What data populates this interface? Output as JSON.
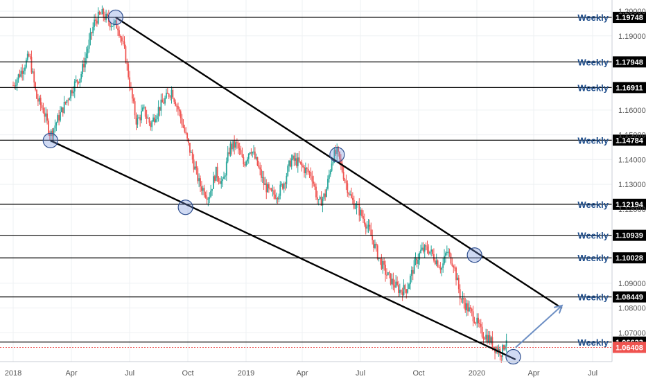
{
  "chart_data": {
    "type": "candlestick",
    "title": "",
    "x_ticks": [
      "2018",
      "Apr",
      "Jul",
      "Oct",
      "2019",
      "Apr",
      "Jul",
      "Oct",
      "2020",
      "Apr",
      "Jul"
    ],
    "y_ticks": [
      "1.20000",
      "1.19000",
      "1.16000",
      "1.15000",
      "1.14000",
      "1.13000",
      "1.12000",
      "1.09000",
      "1.08000",
      "1.07000"
    ],
    "ylim": [
      1.0505,
      1.2045
    ],
    "grid": true,
    "last_price": {
      "value": 1.06408,
      "label": "1.06408"
    },
    "horizontal_levels": [
      {
        "tag": "Weekly",
        "value": 1.19748,
        "label": "1.19748"
      },
      {
        "tag": "Weekly",
        "value": 1.17948,
        "label": "1.17948"
      },
      {
        "tag": "Weekly",
        "value": 1.16911,
        "label": "1.16911"
      },
      {
        "tag": "Weekly",
        "value": 1.14784,
        "label": "1.14784"
      },
      {
        "tag": "Weekly",
        "value": 1.12194,
        "label": "1.12194"
      },
      {
        "tag": "Weekly",
        "value": 1.10939,
        "label": "1.10939"
      },
      {
        "tag": "Weekly",
        "value": 1.10028,
        "label": "1.10028"
      },
      {
        "tag": "Weekly",
        "value": 1.08449,
        "label": "1.08449"
      },
      {
        "tag": "Weekly",
        "value": 1.06623,
        "label": "1.06623"
      }
    ],
    "price_path": [
      [
        0.0,
        1.17
      ],
      [
        0.03,
        1.175
      ],
      [
        0.07,
        1.182
      ],
      [
        0.1,
        1.165
      ],
      [
        0.13,
        1.16
      ],
      [
        0.16,
        1.15
      ],
      [
        0.19,
        1.156
      ],
      [
        0.22,
        1.162
      ],
      [
        0.26,
        1.17
      ],
      [
        0.29,
        1.174
      ],
      [
        0.32,
        1.185
      ],
      [
        0.35,
        1.196
      ],
      [
        0.38,
        1.199
      ],
      [
        0.42,
        1.195
      ],
      [
        0.45,
        1.194
      ],
      [
        0.48,
        1.183
      ],
      [
        0.51,
        1.165
      ],
      [
        0.53,
        1.155
      ],
      [
        0.56,
        1.16
      ],
      [
        0.59,
        1.154
      ],
      [
        0.62,
        1.16
      ],
      [
        0.65,
        1.164
      ],
      [
        0.68,
        1.168
      ],
      [
        0.71,
        1.16
      ],
      [
        0.74,
        1.15
      ],
      [
        0.77,
        1.14
      ],
      [
        0.8,
        1.13
      ],
      [
        0.84,
        1.125
      ],
      [
        0.87,
        1.135
      ],
      [
        0.9,
        1.13
      ],
      [
        0.93,
        1.145
      ],
      [
        0.96,
        1.146
      ],
      [
        0.99,
        1.138
      ],
      [
        1.02,
        1.145
      ],
      [
        1.05,
        1.138
      ],
      [
        1.08,
        1.13
      ],
      [
        1.11,
        1.126
      ],
      [
        1.14,
        1.126
      ],
      [
        1.17,
        1.131
      ],
      [
        1.2,
        1.14
      ],
      [
        1.23,
        1.139
      ],
      [
        1.26,
        1.136
      ],
      [
        1.29,
        1.134
      ],
      [
        1.32,
        1.122
      ],
      [
        1.35,
        1.126
      ],
      [
        1.38,
        1.141
      ],
      [
        1.4,
        1.143
      ],
      [
        1.43,
        1.133
      ],
      [
        1.46,
        1.124
      ],
      [
        1.49,
        1.12
      ],
      [
        1.52,
        1.115
      ],
      [
        1.55,
        1.108
      ],
      [
        1.58,
        1.1
      ],
      [
        1.61,
        1.094
      ],
      [
        1.64,
        1.09
      ],
      [
        1.67,
        1.087
      ],
      [
        1.7,
        1.088
      ],
      [
        1.73,
        1.097
      ],
      [
        1.76,
        1.103
      ],
      [
        1.79,
        1.104
      ],
      [
        1.82,
        1.1
      ],
      [
        1.85,
        1.096
      ],
      [
        1.87,
        1.103
      ],
      [
        1.9,
        1.098
      ],
      [
        1.93,
        1.084
      ],
      [
        1.96,
        1.08
      ],
      [
        1.99,
        1.076
      ],
      [
        2.02,
        1.07
      ],
      [
        2.05,
        1.068
      ],
      [
        2.08,
        1.064
      ],
      [
        2.11,
        1.062
      ],
      [
        2.13,
        1.068
      ]
    ],
    "trend_lines": [
      {
        "name": "upper",
        "from": [
          0.44,
          1.1975
        ],
        "to": [
          2.37,
          1.0799
        ]
      },
      {
        "name": "lower",
        "from": [
          0.16,
          1.1477
        ],
        "to": [
          2.17,
          1.0592
        ]
      }
    ],
    "touch_points": [
      [
        0.44,
        1.1975
      ],
      [
        0.16,
        1.1477
      ],
      [
        0.74,
        1.1207
      ],
      [
        1.4,
        1.142
      ],
      [
        1.99,
        1.1014
      ],
      [
        2.16,
        1.0603
      ]
    ],
    "projection_arrow": {
      "from": [
        2.17,
        1.064
      ],
      "to": [
        2.37,
        1.081
      ]
    }
  }
}
